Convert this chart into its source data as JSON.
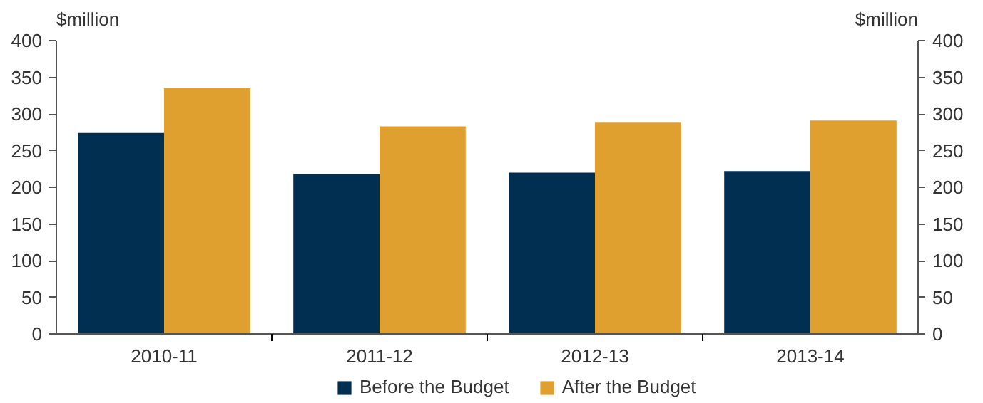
{
  "chart_data": {
    "type": "bar",
    "categories": [
      "2010-11",
      "2011-12",
      "2012-13",
      "2013-14"
    ],
    "series": [
      {
        "name": "Before the Budget",
        "color": "#002f52",
        "values": [
          274,
          218,
          220,
          222
        ]
      },
      {
        "name": "After the Budget",
        "color": "#e0a030",
        "values": [
          335,
          283,
          288,
          291
        ]
      }
    ],
    "ylabel": "$million",
    "y2label": "$million",
    "ylim": [
      0,
      400
    ],
    "yticks": [
      0,
      50,
      100,
      150,
      200,
      250,
      300,
      350,
      400
    ],
    "y2lim": [
      0,
      400
    ],
    "y2ticks": [
      0,
      50,
      100,
      150,
      200,
      250,
      300,
      350,
      400
    ],
    "grid": false,
    "legend": "bottom"
  }
}
